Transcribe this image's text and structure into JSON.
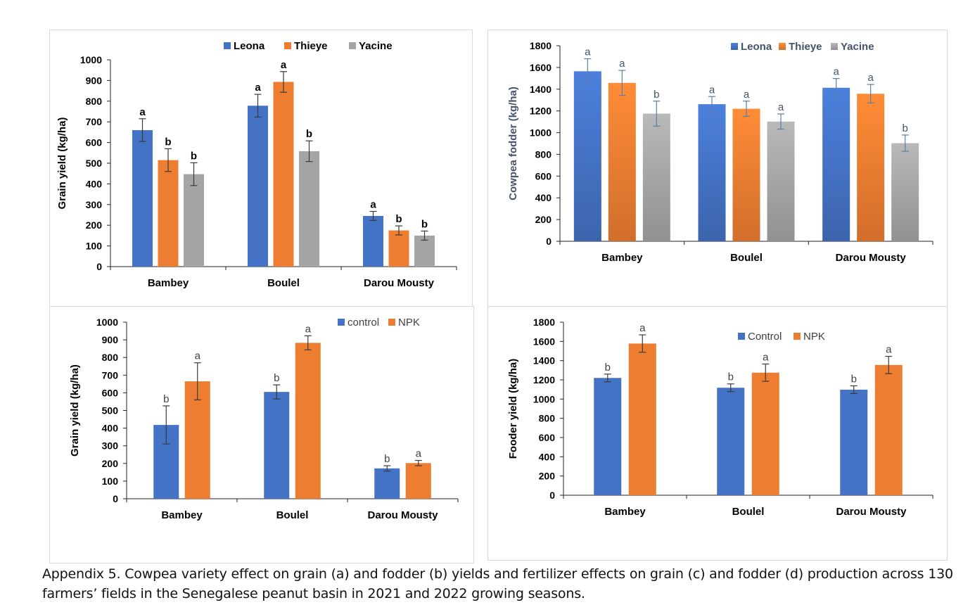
{
  "caption": "Appendix 5. Cowpea variety effect on grain (a) and fodder (b) yields and fertilizer effects on grain (c) and fodder (d) production across 130 farmers’ fields in the Senegalese peanut basin in 2021 and 2022 growing seasons.",
  "colors": {
    "blue": "#4472C4",
    "orange": "#ED7D31",
    "gray": "#A5A5A5",
    "axis": "#222222"
  },
  "chart_data": [
    {
      "id": "a",
      "type": "bar",
      "title": "",
      "xlabel": "",
      "ylabel": "Grain yield (kg/ha)",
      "ylim": [
        0,
        1000
      ],
      "yticks": [
        0,
        100,
        200,
        300,
        400,
        500,
        600,
        700,
        800,
        900,
        1000
      ],
      "categories": [
        "Bambey",
        "Boulel",
        "Darou Mousty"
      ],
      "legend_position": "top",
      "series": [
        {
          "name": "Leona",
          "color": "#4472C4",
          "values": [
            660,
            778,
            245
          ],
          "errors": [
            55,
            55,
            22
          ],
          "letters": [
            "a",
            "a",
            "a"
          ]
        },
        {
          "name": "Thieye",
          "color": "#ED7D31",
          "values": [
            515,
            893,
            175
          ],
          "errors": [
            55,
            50,
            22
          ],
          "letters": [
            "b",
            "a",
            "b"
          ]
        },
        {
          "name": "Yacine",
          "color": "#A5A5A5",
          "values": [
            447,
            558,
            150
          ],
          "errors": [
            55,
            50,
            22
          ],
          "letters": [
            "b",
            "b",
            "b"
          ]
        }
      ]
    },
    {
      "id": "b",
      "type": "bar",
      "title": "",
      "xlabel": "",
      "ylabel": "Cowpea fodder (kg/ha)",
      "ylim": [
        0,
        1800
      ],
      "yticks": [
        0,
        200,
        400,
        600,
        800,
        1000,
        1200,
        1400,
        1600,
        1800
      ],
      "categories": [
        "Bambey",
        "Boulel",
        "Darou Mousty"
      ],
      "legend_position": "top-right",
      "series": [
        {
          "name": "Leona",
          "color": "#4472C4",
          "values": [
            1565,
            1262,
            1413
          ],
          "errors": [
            115,
            70,
            85
          ],
          "letters": [
            "a",
            "a",
            "a"
          ]
        },
        {
          "name": "Thieye",
          "color": "#ED7D31",
          "values": [
            1458,
            1220,
            1358
          ],
          "errors": [
            115,
            70,
            85
          ],
          "letters": [
            "a",
            "a",
            "a"
          ]
        },
        {
          "name": "Yacine",
          "color": "#A5A5A5",
          "values": [
            1175,
            1102,
            903
          ],
          "errors": [
            115,
            70,
            75
          ],
          "letters": [
            "b",
            "a",
            "b"
          ]
        }
      ]
    },
    {
      "id": "c",
      "type": "bar",
      "title": "",
      "xlabel": "",
      "ylabel": "Grain yield (kg/ha)",
      "ylim": [
        0,
        1000
      ],
      "yticks": [
        0,
        100,
        200,
        300,
        400,
        500,
        600,
        700,
        800,
        900,
        1000
      ],
      "categories": [
        "Bambey",
        "Boulel",
        "Darou Mousty"
      ],
      "legend_position": "top-right",
      "series": [
        {
          "name": "control",
          "color": "#4472C4",
          "values": [
            418,
            605,
            172
          ],
          "errors": [
            108,
            40,
            15
          ],
          "letters": [
            "b",
            "b",
            "b"
          ]
        },
        {
          "name": "NPK",
          "color": "#ED7D31",
          "values": [
            665,
            883,
            202
          ],
          "errors": [
            105,
            40,
            15
          ],
          "letters": [
            "a",
            "a",
            "a"
          ]
        }
      ]
    },
    {
      "id": "d",
      "type": "bar",
      "title": "",
      "xlabel": "",
      "ylabel": "Fooder yield (kg/ha)",
      "ylim": [
        0,
        1800
      ],
      "yticks": [
        0,
        200,
        400,
        600,
        800,
        1000,
        1200,
        1400,
        1600,
        1800
      ],
      "categories": [
        "Bambey",
        "Boulel",
        "Darou Mousty"
      ],
      "legend_position": "top",
      "series": [
        {
          "name": "Control",
          "color": "#4472C4",
          "values": [
            1220,
            1118,
            1098
          ],
          "errors": [
            40,
            40,
            40
          ],
          "letters": [
            "b",
            "b",
            "b"
          ]
        },
        {
          "name": "NPK",
          "color": "#ED7D31",
          "values": [
            1578,
            1275,
            1355
          ],
          "errors": [
            90,
            90,
            90
          ],
          "letters": [
            "a",
            "a",
            "a"
          ]
        }
      ]
    }
  ]
}
